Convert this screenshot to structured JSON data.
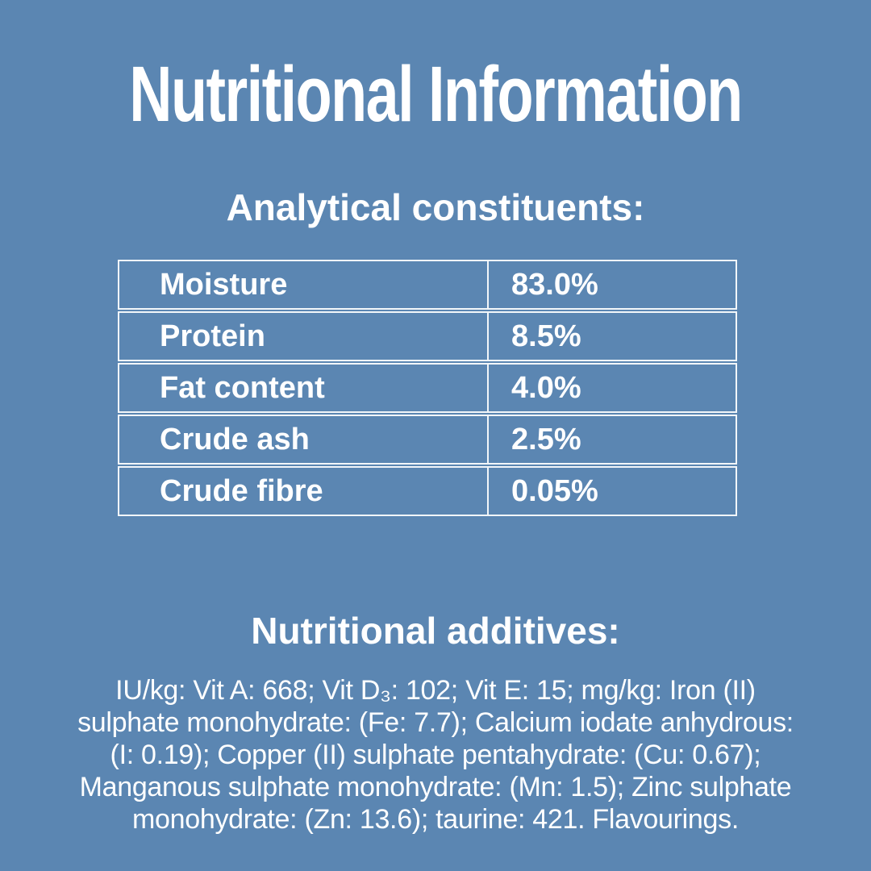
{
  "page": {
    "background_color": "#5b86b2",
    "text_color": "#ffffff",
    "table_border_color": "#f2f6f9",
    "title": "Nutritional Information"
  },
  "analytical": {
    "heading": "Analytical constituents:",
    "rows": [
      {
        "label": "Moisture",
        "value": "83.0%"
      },
      {
        "label": "Protein",
        "value": "8.5%"
      },
      {
        "label": "Fat content",
        "value": "4.0%"
      },
      {
        "label": "Crude ash",
        "value": "2.5%"
      },
      {
        "label": "Crude fibre",
        "value": "0.05%"
      }
    ]
  },
  "additives": {
    "heading": "Nutritional additives:",
    "lines": [
      "IU/kg: Vit A: 668; Vit D₃: 102; Vit E: 15; mg/kg: Iron (II)",
      "sulphate monohydrate: (Fe: 7.7); Calcium iodate anhydrous:",
      "(I: 0.19); Copper (II) sulphate pentahydrate: (Cu: 0.67);",
      "Manganous sulphate monohydrate: (Mn: 1.5); Zinc sulphate",
      "monohydrate: (Zn: 13.6); taurine: 421. Flavourings."
    ]
  }
}
